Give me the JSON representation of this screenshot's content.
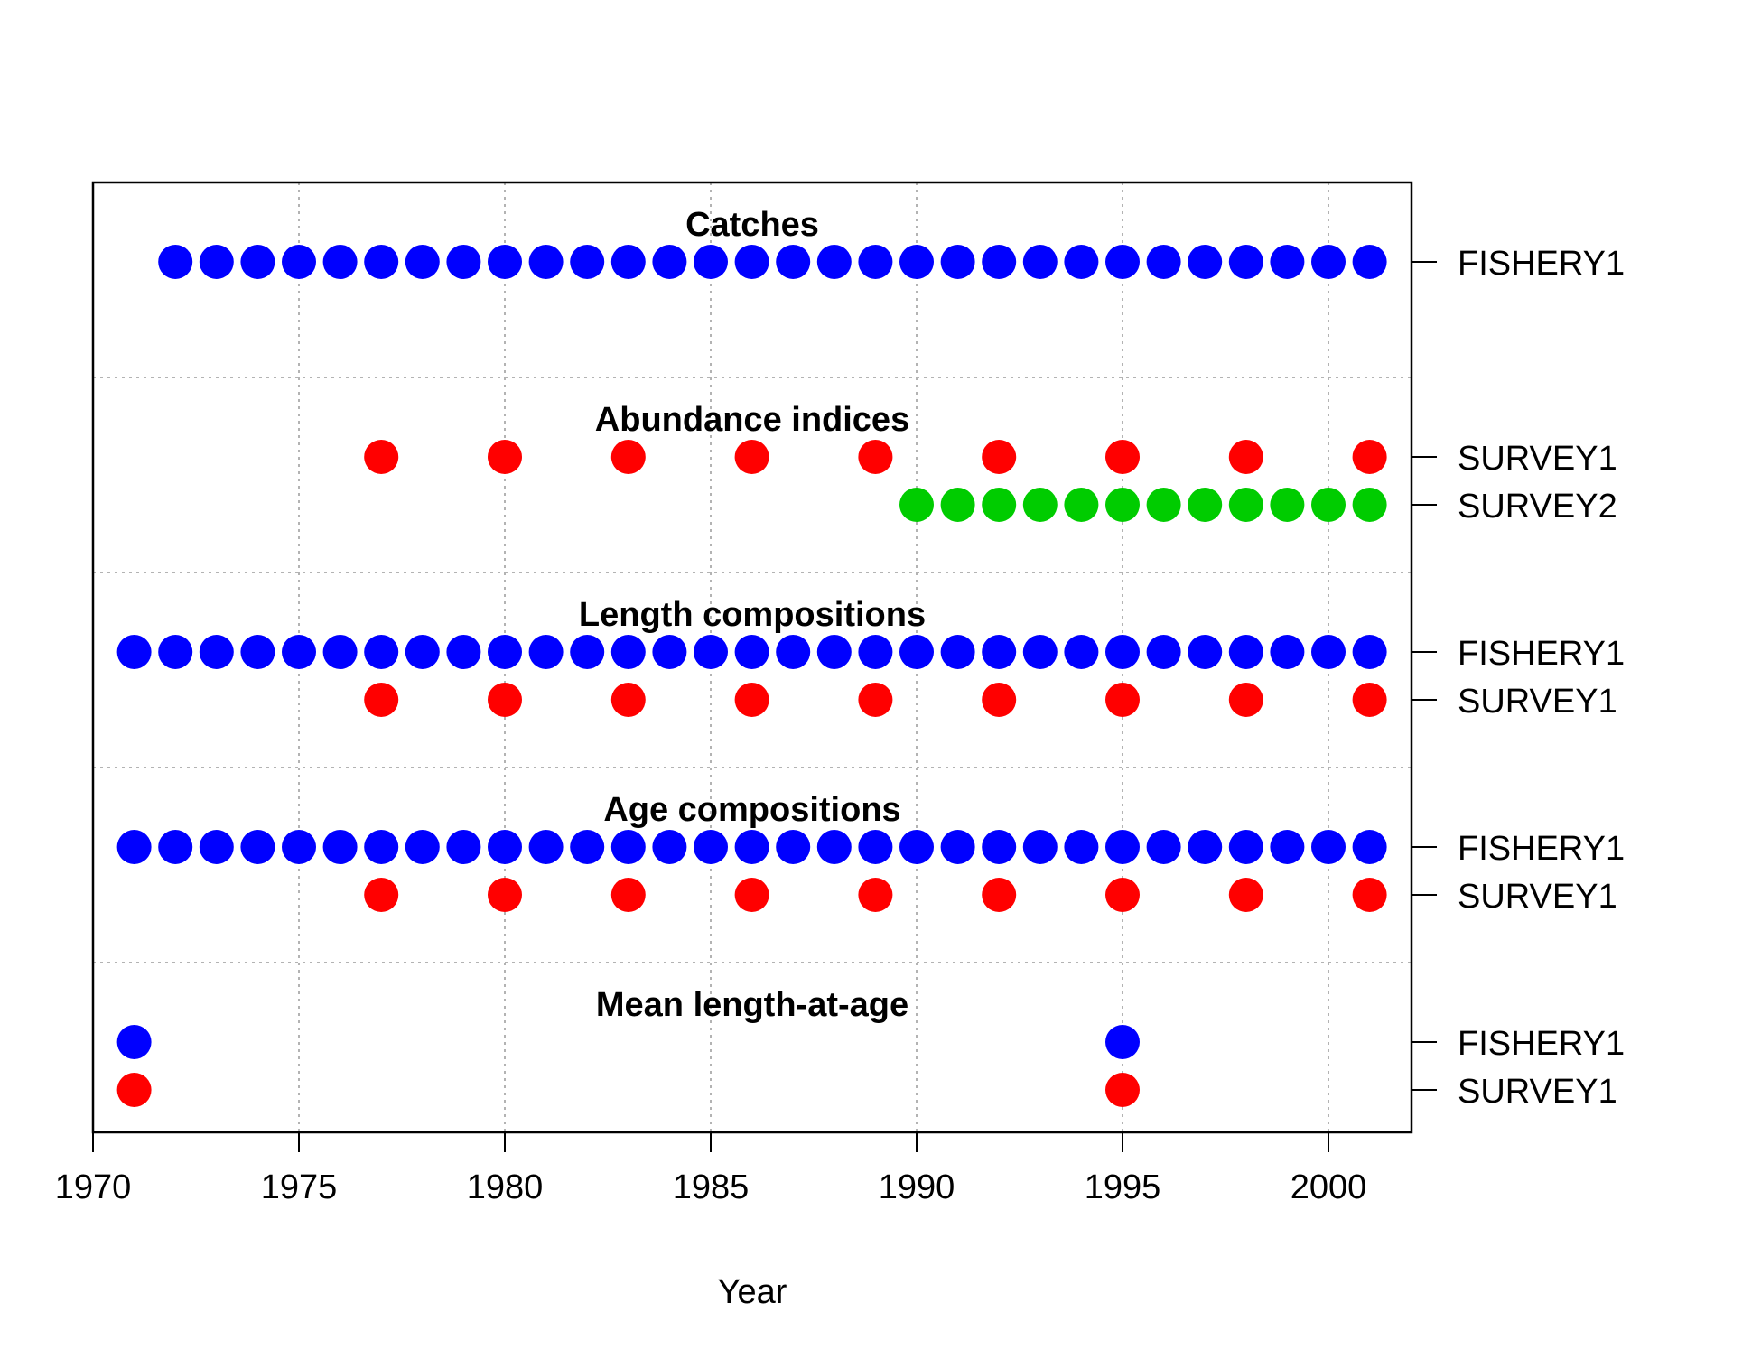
{
  "chart_data": {
    "type": "scatter",
    "xlabel": "Year",
    "xlim": [
      1970,
      2002
    ],
    "x_ticks": [
      "1970",
      "1975",
      "1980",
      "1985",
      "1990",
      "1995",
      "2000"
    ],
    "grid": true,
    "colors": {
      "blue": "#0000ff",
      "red": "#ff0000",
      "green": "#00cc00"
    },
    "sections": [
      {
        "title": "Catches",
        "rows": [
          {
            "label": "FISHERY1",
            "color": "#0000ff",
            "years": [
              1972,
              1973,
              1974,
              1975,
              1976,
              1977,
              1978,
              1979,
              1980,
              1981,
              1982,
              1983,
              1984,
              1985,
              1986,
              1987,
              1988,
              1989,
              1990,
              1991,
              1992,
              1993,
              1994,
              1995,
              1996,
              1997,
              1998,
              1999,
              2000,
              2001
            ]
          }
        ]
      },
      {
        "title": "Abundance indices",
        "rows": [
          {
            "label": "SURVEY1",
            "color": "#ff0000",
            "years": [
              1977,
              1980,
              1983,
              1986,
              1989,
              1992,
              1995,
              1998,
              2001
            ]
          },
          {
            "label": "SURVEY2",
            "color": "#00cc00",
            "years": [
              1990,
              1991,
              1992,
              1993,
              1994,
              1995,
              1996,
              1997,
              1998,
              1999,
              2000,
              2001
            ]
          }
        ]
      },
      {
        "title": "Length compositions",
        "rows": [
          {
            "label": "FISHERY1",
            "color": "#0000ff",
            "years": [
              1971,
              1972,
              1973,
              1974,
              1975,
              1976,
              1977,
              1978,
              1979,
              1980,
              1981,
              1982,
              1983,
              1984,
              1985,
              1986,
              1987,
              1988,
              1989,
              1990,
              1991,
              1992,
              1993,
              1994,
              1995,
              1996,
              1997,
              1998,
              1999,
              2000,
              2001
            ]
          },
          {
            "label": "SURVEY1",
            "color": "#ff0000",
            "years": [
              1977,
              1980,
              1983,
              1986,
              1989,
              1992,
              1995,
              1998,
              2001
            ]
          }
        ]
      },
      {
        "title": "Age compositions",
        "rows": [
          {
            "label": "FISHERY1",
            "color": "#0000ff",
            "years": [
              1971,
              1972,
              1973,
              1974,
              1975,
              1976,
              1977,
              1978,
              1979,
              1980,
              1981,
              1982,
              1983,
              1984,
              1985,
              1986,
              1987,
              1988,
              1989,
              1990,
              1991,
              1992,
              1993,
              1994,
              1995,
              1996,
              1997,
              1998,
              1999,
              2000,
              2001
            ]
          },
          {
            "label": "SURVEY1",
            "color": "#ff0000",
            "years": [
              1977,
              1980,
              1983,
              1986,
              1989,
              1992,
              1995,
              1998,
              2001
            ]
          }
        ]
      },
      {
        "title": "Mean length-at-age",
        "rows": [
          {
            "label": "FISHERY1",
            "color": "#0000ff",
            "years": [
              1971,
              1995
            ]
          },
          {
            "label": "SURVEY1",
            "color": "#ff0000",
            "years": [
              1971,
              1995
            ]
          }
        ]
      }
    ]
  }
}
